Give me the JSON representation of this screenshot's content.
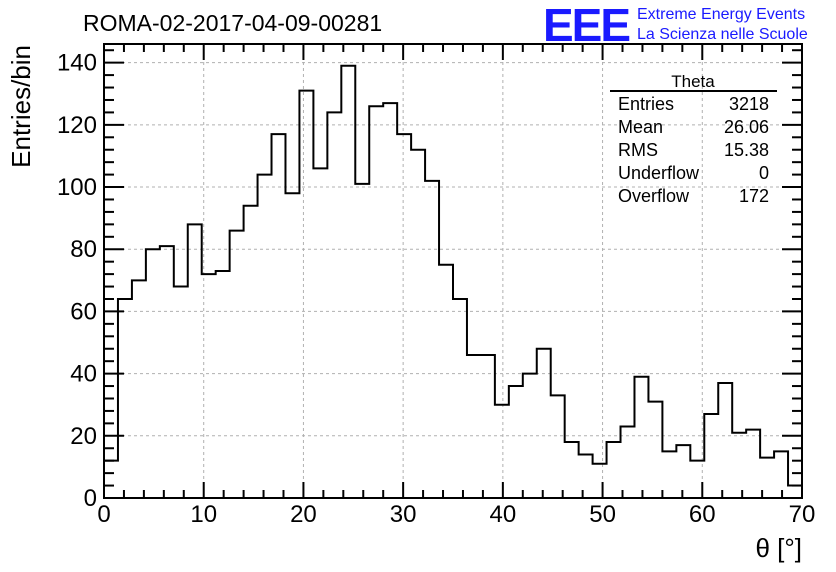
{
  "header": {
    "run_title": "ROMA-02-2017-04-09-00281",
    "logo_text": "EEE",
    "logo_line1": "Extreme Energy Events",
    "logo_line2": "La Scienza nelle Scuole",
    "logo_color": "#1a1aff"
  },
  "stats_box": {
    "title": "Theta",
    "rows": [
      {
        "label": "Entries",
        "value": "3218"
      },
      {
        "label": "Mean",
        "value": "26.06"
      },
      {
        "label": "RMS",
        "value": "15.38"
      },
      {
        "label": "Underflow",
        "value": "0"
      },
      {
        "label": "Overflow",
        "value": "172"
      }
    ]
  },
  "chart_data": {
    "type": "bar",
    "histogram": true,
    "title": "",
    "xlabel": "θ [°]",
    "ylabel": "Entries/bin",
    "xlim": [
      0,
      70
    ],
    "ylim": [
      0,
      146
    ],
    "grid": true,
    "x_ticks": [
      0,
      10,
      20,
      30,
      40,
      50,
      60,
      70
    ],
    "y_ticks": [
      0,
      20,
      40,
      60,
      80,
      100,
      120,
      140
    ],
    "bin_width": 1.4,
    "bin_edges_start": 0,
    "values": [
      12,
      64,
      70,
      80,
      81,
      68,
      88,
      72,
      73,
      86,
      94,
      104,
      117,
      98,
      131,
      106,
      124,
      139,
      101,
      126,
      127,
      117,
      112,
      102,
      75,
      64,
      46,
      46,
      30,
      36,
      40,
      48,
      33,
      18,
      14,
      11,
      18,
      23,
      39,
      31,
      15,
      17,
      12,
      27,
      37,
      21,
      22,
      13,
      15,
      4
    ],
    "line_color": "#000000",
    "grid_color": "#b0b0b0"
  }
}
